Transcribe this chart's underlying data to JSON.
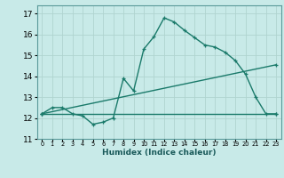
{
  "xlabel": "Humidex (Indice chaleur)",
  "background_color": "#c8eae8",
  "grid_color": "#b0d4d0",
  "line_color": "#1a7a6a",
  "xlim": [
    -0.5,
    23.5
  ],
  "ylim": [
    11,
    17.4
  ],
  "yticks": [
    11,
    12,
    13,
    14,
    15,
    16,
    17
  ],
  "xticks": [
    0,
    1,
    2,
    3,
    4,
    5,
    6,
    7,
    8,
    9,
    10,
    11,
    12,
    13,
    14,
    15,
    16,
    17,
    18,
    19,
    20,
    21,
    22,
    23
  ],
  "line1_x": [
    0,
    1,
    2,
    3,
    4,
    5,
    6,
    7,
    8,
    9,
    10,
    11,
    12,
    13,
    14,
    15,
    16,
    17,
    18,
    19,
    20,
    21,
    22,
    23
  ],
  "line1_y": [
    12.2,
    12.5,
    12.5,
    12.2,
    12.1,
    11.7,
    11.8,
    12.0,
    13.9,
    13.3,
    15.3,
    15.9,
    16.8,
    16.6,
    16.2,
    15.85,
    15.5,
    15.4,
    15.15,
    14.75,
    14.1,
    13.0,
    12.2,
    12.2
  ],
  "line2_x": [
    0,
    23
  ],
  "line2_y": [
    12.2,
    12.2
  ],
  "line3_x": [
    0,
    23
  ],
  "line3_y": [
    12.2,
    14.55
  ]
}
